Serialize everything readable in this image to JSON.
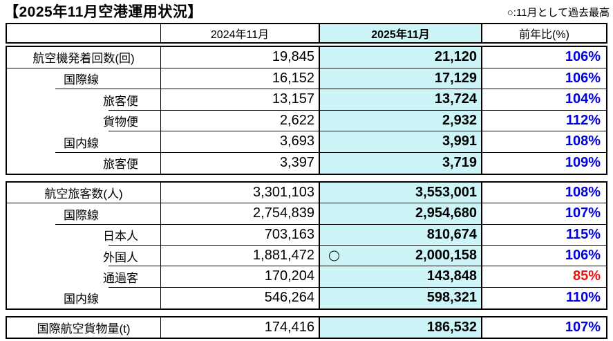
{
  "title": "【2025年11月空港運用状況】",
  "note": "○:11月として過去最高",
  "legend_symbol": "○",
  "columns": [
    "",
    "2024年11月",
    "2025年11月",
    "前年比(%)"
  ],
  "colors": {
    "highlight_column_bg": "#CDF5F8",
    "yoy_positive": "#0000DD",
    "yoy_negative": "#EE1111",
    "border": "#000000"
  },
  "table": {
    "blocks": [
      {
        "rows": [
          {
            "label": "航空機発着回数(回)",
            "indent": 1,
            "label_border": "full",
            "v2024": "19,845",
            "v2025": "21,120",
            "mark": "",
            "yoy": "106%",
            "yoy_color": "blue"
          },
          {
            "label": "国際線",
            "indent": 2,
            "label_border": "l2",
            "v2024": "16,152",
            "v2025": "17,129",
            "mark": "",
            "yoy": "106%",
            "yoy_color": "blue"
          },
          {
            "label": "旅客便",
            "indent": 3,
            "label_border": "l3",
            "v2024": "13,157",
            "v2025": "13,724",
            "mark": "",
            "yoy": "104%",
            "yoy_color": "blue"
          },
          {
            "label": "貨物便",
            "indent": 3,
            "label_border": "l3",
            "v2024": "2,622",
            "v2025": "2,932",
            "mark": "",
            "yoy": "112%",
            "yoy_color": "blue"
          },
          {
            "label": "国内線",
            "indent": 2,
            "label_border": "l2",
            "v2024": "3,693",
            "v2025": "3,991",
            "mark": "",
            "yoy": "108%",
            "yoy_color": "blue"
          },
          {
            "label": "旅客便",
            "indent": 3,
            "label_border": "none",
            "v2024": "3,397",
            "v2025": "3,719",
            "mark": "",
            "yoy": "109%",
            "yoy_color": "blue"
          }
        ]
      },
      {
        "rows": [
          {
            "label": "航空旅客数(人)",
            "indent": 1,
            "label_border": "full",
            "v2024": "3,301,103",
            "v2025": "3,553,001",
            "mark": "",
            "yoy": "108%",
            "yoy_color": "blue"
          },
          {
            "label": "国際線",
            "indent": 2,
            "label_border": "l2",
            "v2024": "2,754,839",
            "v2025": "2,954,680",
            "mark": "",
            "yoy": "107%",
            "yoy_color": "blue"
          },
          {
            "label": "日本人",
            "indent": 3,
            "label_border": "l3",
            "v2024": "703,163",
            "v2025": "810,674",
            "mark": "",
            "yoy": "115%",
            "yoy_color": "blue"
          },
          {
            "label": "外国人",
            "indent": 3,
            "label_border": "l3",
            "v2024": "1,881,472",
            "v2025": "2,000,158",
            "mark": "○",
            "yoy": "106%",
            "yoy_color": "blue"
          },
          {
            "label": "通過客",
            "indent": 3,
            "label_border": "l3",
            "v2024": "170,204",
            "v2025": "143,848",
            "mark": "",
            "yoy": "85%",
            "yoy_color": "red"
          },
          {
            "label": "国内線",
            "indent": 2,
            "label_border": "none",
            "v2024": "546,264",
            "v2025": "598,321",
            "mark": "",
            "yoy": "110%",
            "yoy_color": "blue"
          }
        ]
      },
      {
        "rows": [
          {
            "label": "国際航空貨物量(t)",
            "indent": 1,
            "label_border": "none",
            "v2024": "174,416",
            "v2025": "186,532",
            "mark": "",
            "yoy": "107%",
            "yoy_color": "blue"
          }
        ]
      }
    ]
  }
}
